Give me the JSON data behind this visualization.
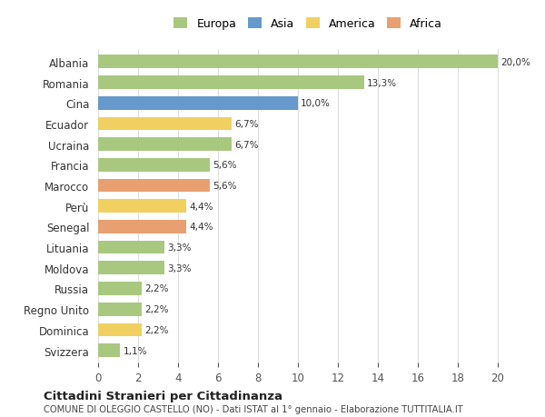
{
  "countries": [
    "Albania",
    "Romania",
    "Cina",
    "Ecuador",
    "Ucraina",
    "Francia",
    "Marocco",
    "Perù",
    "Senegal",
    "Lituania",
    "Moldova",
    "Russia",
    "Regno Unito",
    "Dominica",
    "Svizzera"
  ],
  "values": [
    20.0,
    13.3,
    10.0,
    6.7,
    6.7,
    5.6,
    5.6,
    4.4,
    4.4,
    3.3,
    3.3,
    2.2,
    2.2,
    2.2,
    1.1
  ],
  "labels": [
    "20,0%",
    "13,3%",
    "10,0%",
    "6,7%",
    "6,7%",
    "5,6%",
    "5,6%",
    "4,4%",
    "4,4%",
    "3,3%",
    "3,3%",
    "2,2%",
    "2,2%",
    "2,2%",
    "1,1%"
  ],
  "continents": [
    "Europa",
    "Europa",
    "Asia",
    "America",
    "Europa",
    "Europa",
    "Africa",
    "America",
    "Africa",
    "Europa",
    "Europa",
    "Europa",
    "Europa",
    "America",
    "Europa"
  ],
  "continent_colors": {
    "Europa": "#a8c880",
    "Asia": "#6699cc",
    "America": "#f0d060",
    "Africa": "#e8a070"
  },
  "legend_order": [
    "Europa",
    "Asia",
    "America",
    "Africa"
  ],
  "title": "Cittadini Stranieri per Cittadinanza",
  "subtitle": "COMUNE DI OLEGGIO CASTELLO (NO) - Dati ISTAT al 1° gennaio - Elaborazione TUTTITALIA.IT",
  "xlim": [
    0,
    21
  ],
  "xticks": [
    0,
    2,
    4,
    6,
    8,
    10,
    12,
    14,
    16,
    18,
    20
  ],
  "background_color": "#ffffff",
  "grid_color": "#dddddd",
  "bar_height": 0.65
}
